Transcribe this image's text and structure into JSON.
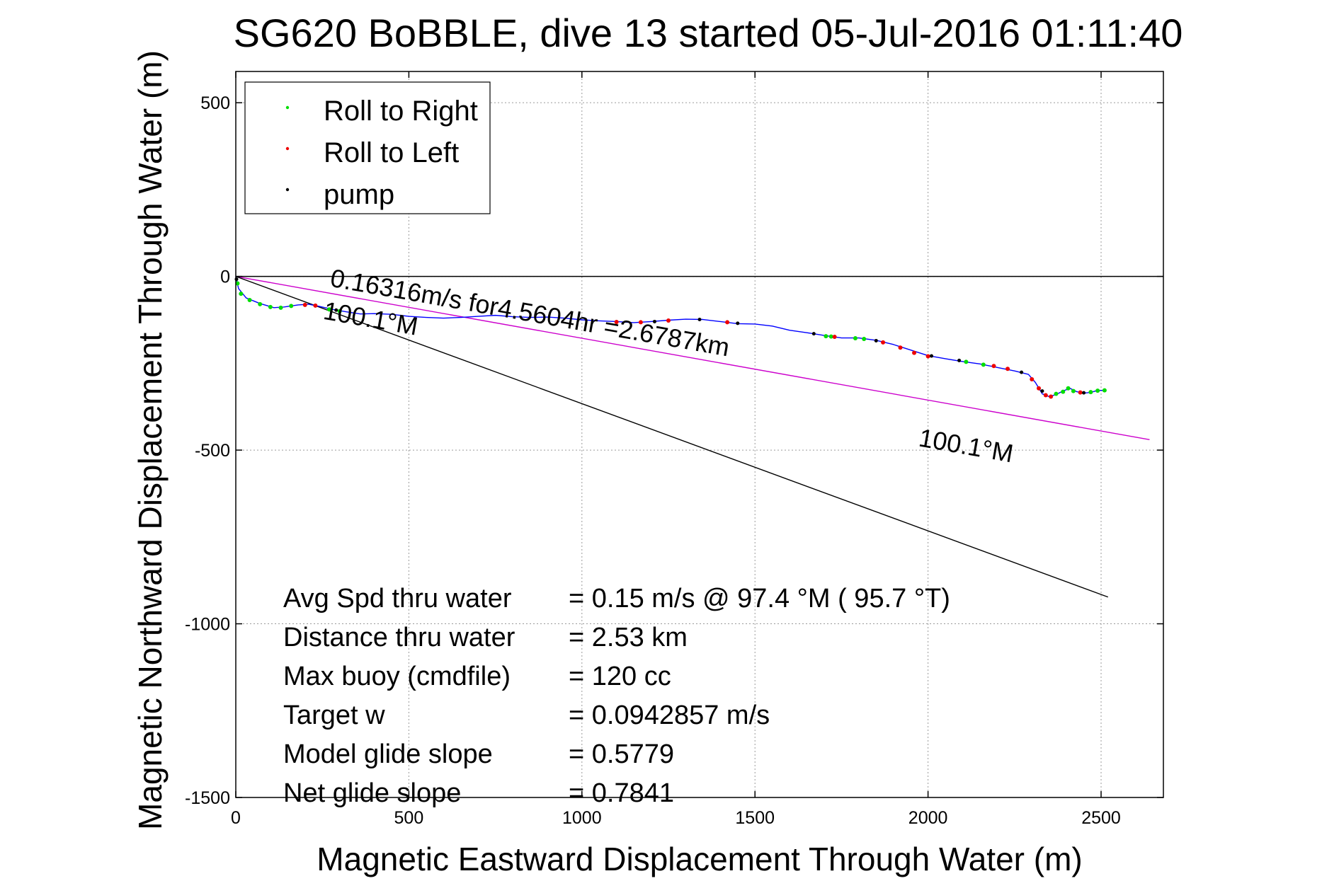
{
  "chart_data": {
    "type": "scatter",
    "title": "SG620 BoBBLE, dive 13 started 05-Jul-2016 01:11:40",
    "xlabel": "Magnetic Eastward Displacement Through Water (m)",
    "ylabel": "Magnetic Northward Displacement Through Water (m)",
    "xlim": [
      0,
      2680
    ],
    "ylim": [
      -1500,
      590
    ],
    "x_ticks": [
      0,
      500,
      1000,
      1500,
      2000,
      2500
    ],
    "y_ticks": [
      500,
      0,
      -500,
      -1000,
      -1500
    ],
    "x_tick_labels": [
      "0",
      "500",
      "1000",
      "1500",
      "2000",
      "2500"
    ],
    "y_tick_labels": [
      "500",
      "0",
      "-500",
      "-1000",
      "-1500"
    ],
    "grid": true,
    "legend_position": "top-left",
    "legend": [
      {
        "label": "Roll to Right",
        "color": "#00dd00"
      },
      {
        "label": "Roll to Left",
        "color": "#ee0000"
      },
      {
        "label": "pump",
        "color": "#000000"
      }
    ],
    "track": {
      "color": "#0000ff",
      "points": [
        [
          0,
          0
        ],
        [
          8,
          -35
        ],
        [
          30,
          -62
        ],
        [
          70,
          -78
        ],
        [
          110,
          -90
        ],
        [
          140,
          -88
        ],
        [
          180,
          -82
        ],
        [
          210,
          -80
        ],
        [
          240,
          -86
        ],
        [
          280,
          -95
        ],
        [
          320,
          -102
        ],
        [
          360,
          -108
        ],
        [
          400,
          -107
        ],
        [
          450,
          -109
        ],
        [
          500,
          -115
        ],
        [
          550,
          -118
        ],
        [
          600,
          -120
        ],
        [
          650,
          -118
        ],
        [
          700,
          -115
        ],
        [
          750,
          -112
        ],
        [
          800,
          -116
        ],
        [
          850,
          -118
        ],
        [
          900,
          -117
        ],
        [
          950,
          -120
        ],
        [
          1000,
          -125
        ],
        [
          1050,
          -128
        ],
        [
          1100,
          -130
        ],
        [
          1150,
          -133
        ],
        [
          1200,
          -130
        ],
        [
          1250,
          -126
        ],
        [
          1300,
          -123
        ],
        [
          1350,
          -124
        ],
        [
          1400,
          -130
        ],
        [
          1450,
          -136
        ],
        [
          1500,
          -137
        ],
        [
          1550,
          -143
        ],
        [
          1600,
          -155
        ],
        [
          1650,
          -162
        ],
        [
          1700,
          -170
        ],
        [
          1750,
          -177
        ],
        [
          1800,
          -177
        ],
        [
          1850,
          -184
        ],
        [
          1900,
          -196
        ],
        [
          1950,
          -212
        ],
        [
          2000,
          -228
        ],
        [
          2050,
          -237
        ],
        [
          2100,
          -245
        ],
        [
          2150,
          -252
        ],
        [
          2200,
          -262
        ],
        [
          2250,
          -272
        ],
        [
          2290,
          -282
        ],
        [
          2310,
          -305
        ],
        [
          2330,
          -338
        ],
        [
          2350,
          -346
        ],
        [
          2370,
          -340
        ],
        [
          2390,
          -330
        ],
        [
          2410,
          -322
        ],
        [
          2430,
          -332
        ],
        [
          2450,
          -336
        ],
        [
          2470,
          -334
        ],
        [
          2490,
          -328
        ],
        [
          2510,
          -328
        ]
      ]
    },
    "roll_right_points": [
      [
        5,
        -20
      ],
      [
        15,
        -50
      ],
      [
        40,
        -68
      ],
      [
        70,
        -80
      ],
      [
        100,
        -88
      ],
      [
        130,
        -90
      ],
      [
        160,
        -85
      ],
      [
        270,
        -95
      ],
      [
        300,
        -100
      ],
      [
        1705,
        -172
      ],
      [
        1720,
        -173
      ],
      [
        1790,
        -178
      ],
      [
        1815,
        -180
      ],
      [
        2110,
        -246
      ],
      [
        2160,
        -254
      ],
      [
        2370,
        -338
      ],
      [
        2390,
        -332
      ],
      [
        2405,
        -322
      ],
      [
        2420,
        -330
      ],
      [
        2470,
        -333
      ],
      [
        2490,
        -329
      ],
      [
        2510,
        -328
      ]
    ],
    "roll_left_points": [
      [
        200,
        -82
      ],
      [
        230,
        -84
      ],
      [
        1100,
        -131
      ],
      [
        1170,
        -132
      ],
      [
        1250,
        -127
      ],
      [
        1420,
        -132
      ],
      [
        1730,
        -174
      ],
      [
        1870,
        -190
      ],
      [
        1920,
        -205
      ],
      [
        1960,
        -220
      ],
      [
        2000,
        -230
      ],
      [
        2190,
        -258
      ],
      [
        2230,
        -266
      ],
      [
        2300,
        -296
      ],
      [
        2320,
        -322
      ],
      [
        2340,
        -342
      ],
      [
        2355,
        -346
      ],
      [
        2440,
        -334
      ]
    ],
    "pump_points": [
      [
        2,
        -8
      ],
      [
        290,
        -97
      ],
      [
        1210,
        -130
      ],
      [
        1340,
        -124
      ],
      [
        1450,
        -135
      ],
      [
        1670,
        -165
      ],
      [
        1850,
        -185
      ],
      [
        2010,
        -229
      ],
      [
        2090,
        -242
      ],
      [
        2270,
        -276
      ],
      [
        2330,
        -330
      ],
      [
        2450,
        -335
      ]
    ],
    "lines": [
      {
        "name": "",
        "color": "#cc00cc",
        "points": [
          [
            0,
            0
          ],
          [
            2640,
            -470
          ]
        ]
      },
      {
        "name": "",
        "color": "#000000",
        "points": [
          [
            0,
            0
          ],
          [
            2520,
            -923
          ]
        ]
      }
    ],
    "annotations": [
      {
        "text": "0.16316m/s for4.5604hr =2.6787km",
        "x": 270,
        "y": -28,
        "rotation_deg": 10
      },
      {
        "text": "100.1°M",
        "x": 250,
        "y": -122,
        "rotation_deg": 10
      },
      {
        "text": "100.1°M",
        "x": 1970,
        "y": -488,
        "rotation_deg": 10
      }
    ],
    "stats": [
      {
        "label": "Avg Spd thru water",
        "value": "=  0.15 m/s @  97.4 °M ( 95.7 °T)"
      },
      {
        "label": "Distance thru water",
        "value": "=  2.53 km"
      },
      {
        "label": "Max buoy (cmdfile)",
        "value": "= 120 cc"
      },
      {
        "label": "Target w",
        "value": "= 0.0942857 m/s"
      },
      {
        "label": "Model glide slope",
        "value": "= 0.5779"
      },
      {
        "label": "Net glide slope",
        "value": "= 0.7841"
      }
    ]
  }
}
